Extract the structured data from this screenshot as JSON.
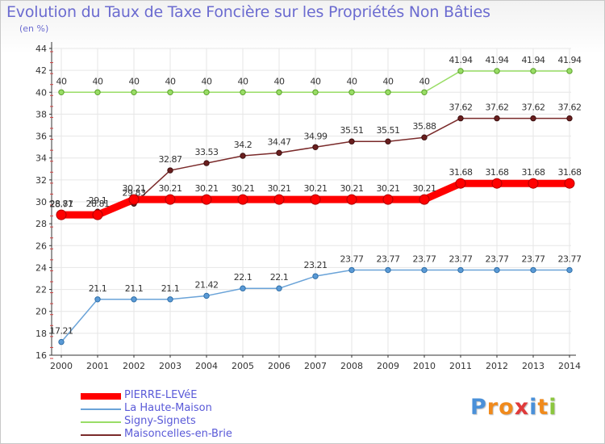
{
  "chart_data": {
    "type": "line",
    "title": "Evolution du Taux de Taxe Foncière sur les Propriétés Non Bâties",
    "subtitle": "(en %)",
    "x": [
      "2000",
      "2001",
      "2002",
      "2003",
      "2004",
      "2005",
      "2006",
      "2007",
      "2008",
      "2009",
      "2010",
      "2011",
      "2012",
      "2013",
      "2014"
    ],
    "ylim": [
      16,
      44
    ],
    "yticks": [
      16,
      18,
      20,
      22,
      24,
      26,
      28,
      30,
      32,
      34,
      36,
      38,
      40,
      42,
      44
    ],
    "grid": true,
    "series": [
      {
        "name": "PIERRE-LEVéE",
        "color": "#ff0000",
        "values": [
          28.81,
          28.81,
          30.21,
          30.21,
          30.21,
          30.21,
          30.21,
          30.21,
          30.21,
          30.21,
          30.21,
          31.68,
          31.68,
          31.68,
          31.68
        ],
        "labels": [
          "28.81",
          "28.81",
          "30.21",
          "30.21",
          "30.21",
          "30.21",
          "30.21",
          "30.21",
          "30.21",
          "30.21",
          "30.21",
          "31.68",
          "31.68",
          "31.68",
          "31.68"
        ]
      },
      {
        "name": "La Haute-Maison",
        "color": "#6aa3d8",
        "values": [
          17.21,
          21.1,
          21.1,
          21.1,
          21.42,
          22.1,
          22.1,
          23.21,
          23.77,
          23.77,
          23.77,
          23.77,
          23.77,
          23.77,
          23.77
        ],
        "labels": [
          "17.21",
          "21.1",
          "21.1",
          "21.1",
          "21.42",
          "22.1",
          "22.1",
          "23.21",
          "23.77",
          "23.77",
          "23.77",
          "23.77",
          "23.77",
          "23.77",
          "23.77"
        ]
      },
      {
        "name": "Signy-Signets",
        "color": "#99dd66",
        "values": [
          40,
          40,
          40,
          40,
          40,
          40,
          40,
          40,
          40,
          40,
          40,
          41.94,
          41.94,
          41.94,
          41.94
        ],
        "labels": [
          "40",
          "40",
          "40",
          "40",
          "40",
          "40",
          "40",
          "40",
          "40",
          "40",
          "40",
          "41.94",
          "41.94",
          "41.94",
          "41.94"
        ]
      },
      {
        "name": "Maisoncelles-en-Brie",
        "color": "#7a2a2a",
        "values": [
          28.77,
          29.1,
          29.83,
          32.87,
          33.53,
          34.2,
          34.47,
          34.99,
          35.51,
          35.51,
          35.88,
          37.62,
          37.62,
          37.62,
          37.62
        ],
        "labels": [
          "28.77",
          "29.1",
          "29.83",
          "32.87",
          "33.53",
          "34.2",
          "34.47",
          "34.99",
          "35.51",
          "35.51",
          "35.88",
          "37.62",
          "37.62",
          "37.62",
          "37.62"
        ]
      }
    ]
  },
  "legend": {
    "items": [
      {
        "label": "PIERRE-LEVéE"
      },
      {
        "label": "La Haute-Maison"
      },
      {
        "label": "Signy-Signets"
      },
      {
        "label": "Maisoncelles-en-Brie"
      }
    ]
  },
  "logo": {
    "text": "Proxiti",
    "letters": [
      "P",
      "r",
      "o",
      "x",
      "i",
      "t",
      "i"
    ],
    "colors": [
      "#4a90d9",
      "#f08a1c",
      "#f08a1c",
      "#e03a3a",
      "#4a90d9",
      "#f08a1c",
      "#8cc63f"
    ]
  }
}
